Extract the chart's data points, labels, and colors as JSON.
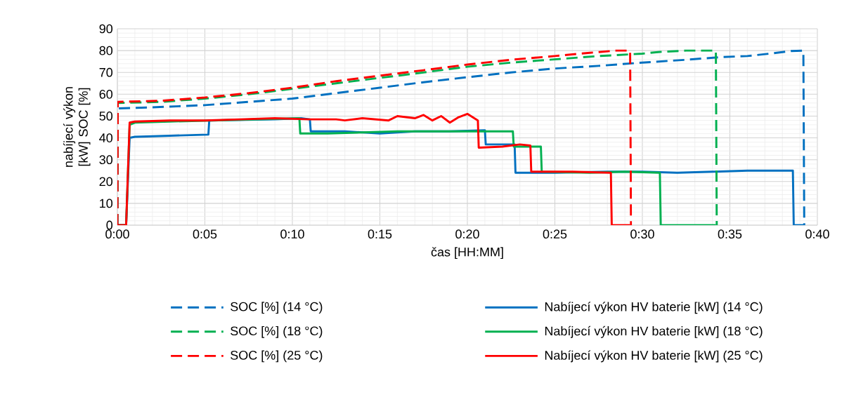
{
  "chart_data": {
    "type": "line",
    "xlabel": "čas [HH:MM]",
    "ylabel": "nabíjecí výkon [kW] SOC [%]",
    "xlim": [
      0,
      40
    ],
    "ylim": [
      0,
      90
    ],
    "xticks": [
      {
        "value": 0,
        "label": "0:00"
      },
      {
        "value": 5,
        "label": "0:05"
      },
      {
        "value": 10,
        "label": "0:10"
      },
      {
        "value": 15,
        "label": "0:15"
      },
      {
        "value": 20,
        "label": "0:20"
      },
      {
        "value": 25,
        "label": "0:25"
      },
      {
        "value": 30,
        "label": "0:30"
      },
      {
        "value": 35,
        "label": "0:35"
      },
      {
        "value": 40,
        "label": "0:40"
      }
    ],
    "yticks": [
      0,
      10,
      20,
      30,
      40,
      50,
      60,
      70,
      80,
      90
    ],
    "grid": true,
    "legend": "bottom",
    "marker": "none",
    "series": [
      {
        "name": "SOC [%] (14 °C)",
        "color": "#0070c0",
        "line_style": "dashed",
        "x": [
          0,
          0.02,
          2,
          5,
          7.5,
          10,
          12.5,
          15,
          17.5,
          20,
          22.5,
          25,
          27.5,
          30,
          32.5,
          34.5,
          36,
          37.5,
          38.5,
          39.2,
          39.25
        ],
        "values": [
          0,
          53.5,
          54,
          55,
          56.5,
          58,
          60.5,
          63,
          65.5,
          67.8,
          70,
          71.8,
          73,
          74.5,
          75.8,
          77,
          77.5,
          78.8,
          79.8,
          80,
          0
        ]
      },
      {
        "name": "Nabíjecí výkon HV baterie [kW] (14 °C)",
        "color": "#0070c0",
        "line_style": "solid",
        "x": [
          0,
          0.5,
          0.7,
          1,
          3,
          5.2,
          5.25,
          9,
          10.5,
          11,
          11.05,
          13,
          15,
          17,
          19,
          21,
          21.05,
          22.7,
          22.75,
          25,
          28,
          30,
          32,
          34,
          36,
          37,
          38.6,
          38.65,
          39.2
        ],
        "values": [
          0,
          0,
          40,
          40.5,
          41,
          41.5,
          48,
          48.5,
          49,
          48.5,
          43,
          43,
          42,
          43,
          43,
          43.5,
          37,
          37,
          24,
          24,
          24.5,
          24.5,
          24,
          24.5,
          25,
          25,
          25,
          0,
          0
        ]
      },
      {
        "name": "SOC [%] (18 °C)",
        "color": "#00b050",
        "line_style": "dashed",
        "x": [
          0,
          0.02,
          2.5,
          5,
          7.5,
          10,
          12.5,
          15,
          17.5,
          20,
          22.5,
          25,
          27.5,
          30,
          31,
          32.5,
          34.2,
          34.25
        ],
        "values": [
          0,
          56,
          56.5,
          58,
          60,
          62.5,
          65,
          67.5,
          70,
          72.6,
          74.5,
          76,
          77.5,
          78.6,
          79.4,
          80,
          80,
          0
        ]
      },
      {
        "name": "Nabíjecí výkon HV baterie [kW] (18 °C)",
        "color": "#00b050",
        "line_style": "solid",
        "x": [
          0,
          0.5,
          0.7,
          1,
          3,
          10.4,
          10.45,
          12,
          14,
          16,
          18,
          20,
          22.6,
          22.65,
          24.2,
          24.25,
          27,
          29,
          31,
          31.05,
          34.2
        ],
        "values": [
          0,
          0,
          46,
          47,
          47.5,
          49,
          42,
          42,
          42.5,
          43,
          43,
          43,
          43,
          36,
          36,
          24.5,
          24,
          24.5,
          24,
          0,
          0
        ]
      },
      {
        "name": "SOC [%] (25 °C)",
        "color": "#ff0000",
        "line_style": "dashed",
        "x": [
          0,
          0.02,
          2.5,
          5,
          7.5,
          10,
          12.5,
          15,
          17.5,
          20,
          22.5,
          25,
          27,
          28.5,
          29.3,
          29.35
        ],
        "values": [
          0,
          56.5,
          57,
          58.5,
          60.5,
          63,
          66,
          68.5,
          71,
          73.6,
          75.8,
          77.5,
          79,
          80,
          80,
          0
        ]
      },
      {
        "name": "Nabíjecí výkon HV baterie [kW] (25 °C)",
        "color": "#ff0000",
        "line_style": "solid",
        "x": [
          0,
          0.5,
          0.7,
          1,
          3,
          5,
          7,
          9,
          11,
          12.5,
          13,
          14,
          15.5,
          16,
          17,
          17.5,
          18,
          18.5,
          19,
          19.5,
          20,
          20.6,
          20.65,
          22,
          23,
          23.6,
          23.65,
          26,
          28.2,
          28.25,
          29.3
        ],
        "values": [
          0,
          0,
          47,
          47.5,
          48,
          48,
          48.5,
          49,
          48.5,
          48.5,
          48,
          49,
          48,
          50,
          49,
          50.5,
          48,
          50,
          47,
          49.5,
          51,
          48,
          35.5,
          36,
          37,
          36.5,
          24.5,
          24.5,
          24,
          0,
          0
        ]
      }
    ]
  }
}
